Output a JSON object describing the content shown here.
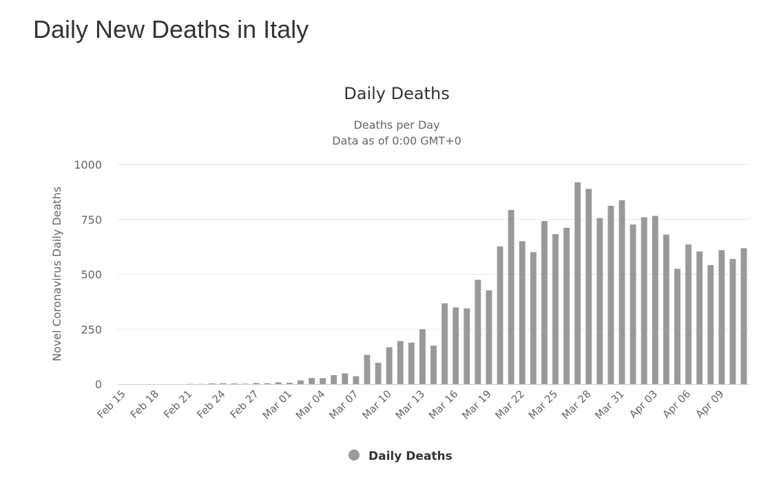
{
  "page": {
    "title": "Daily New Deaths in Italy"
  },
  "colors": {
    "bar": "#999999",
    "grid": "#e6e6e6",
    "axis": "#cccccc",
    "text": "#666666",
    "title": "#333333"
  },
  "chart_data": {
    "type": "bar",
    "title": "Daily Deaths",
    "subtitle_lines": [
      "Deaths per Day",
      "Data as of 0:00 GMT+0"
    ],
    "xlabel": "",
    "ylabel": "Novel Coronavirus Daily Deaths",
    "ylim": [
      0,
      1000
    ],
    "yticks": [
      0,
      250,
      500,
      750,
      1000
    ],
    "legend": "Daily Deaths",
    "grid": true,
    "categories": [
      "Feb 15",
      "Feb 16",
      "Feb 17",
      "Feb 18",
      "Feb 19",
      "Feb 20",
      "Feb 21",
      "Feb 22",
      "Feb 23",
      "Feb 24",
      "Feb 25",
      "Feb 26",
      "Feb 27",
      "Feb 28",
      "Feb 29",
      "Mar 01",
      "Mar 02",
      "Mar 03",
      "Mar 04",
      "Mar 05",
      "Mar 06",
      "Mar 07",
      "Mar 08",
      "Mar 09",
      "Mar 10",
      "Mar 11",
      "Mar 12",
      "Mar 13",
      "Mar 14",
      "Mar 15",
      "Mar 16",
      "Mar 17",
      "Mar 18",
      "Mar 19",
      "Mar 20",
      "Mar 21",
      "Mar 22",
      "Mar 23",
      "Mar 24",
      "Mar 25",
      "Mar 26",
      "Mar 27",
      "Mar 28",
      "Mar 29",
      "Mar 30",
      "Mar 31",
      "Apr 01",
      "Apr 02",
      "Apr 03",
      "Apr 04",
      "Apr 05",
      "Apr 06",
      "Apr 07",
      "Apr 08",
      "Apr 09",
      "Apr 10",
      "Apr 11"
    ],
    "xtick_labels": [
      "Feb 15",
      "Feb 18",
      "Feb 21",
      "Feb 24",
      "Feb 27",
      "Mar 01",
      "Mar 04",
      "Mar 07",
      "Mar 10",
      "Mar 13",
      "Mar 16",
      "Mar 19",
      "Mar 22",
      "Mar 25",
      "Mar 28",
      "Mar 31",
      "Apr 03",
      "Apr 06",
      "Apr 09"
    ],
    "series": [
      {
        "name": "Daily Deaths",
        "values": [
          0,
          0,
          0,
          0,
          0,
          0,
          1,
          1,
          3,
          4,
          3,
          2,
          5,
          4,
          8,
          6,
          17,
          28,
          27,
          41,
          49,
          36,
          133,
          97,
          168,
          196,
          189,
          250,
          175,
          368,
          349,
          345,
          475,
          427,
          627,
          793,
          651,
          601,
          743,
          683,
          712,
          919,
          889,
          756,
          812,
          837,
          727,
          760,
          766,
          681,
          525,
          636,
          604,
          542,
          610,
          570,
          619
        ]
      }
    ]
  }
}
